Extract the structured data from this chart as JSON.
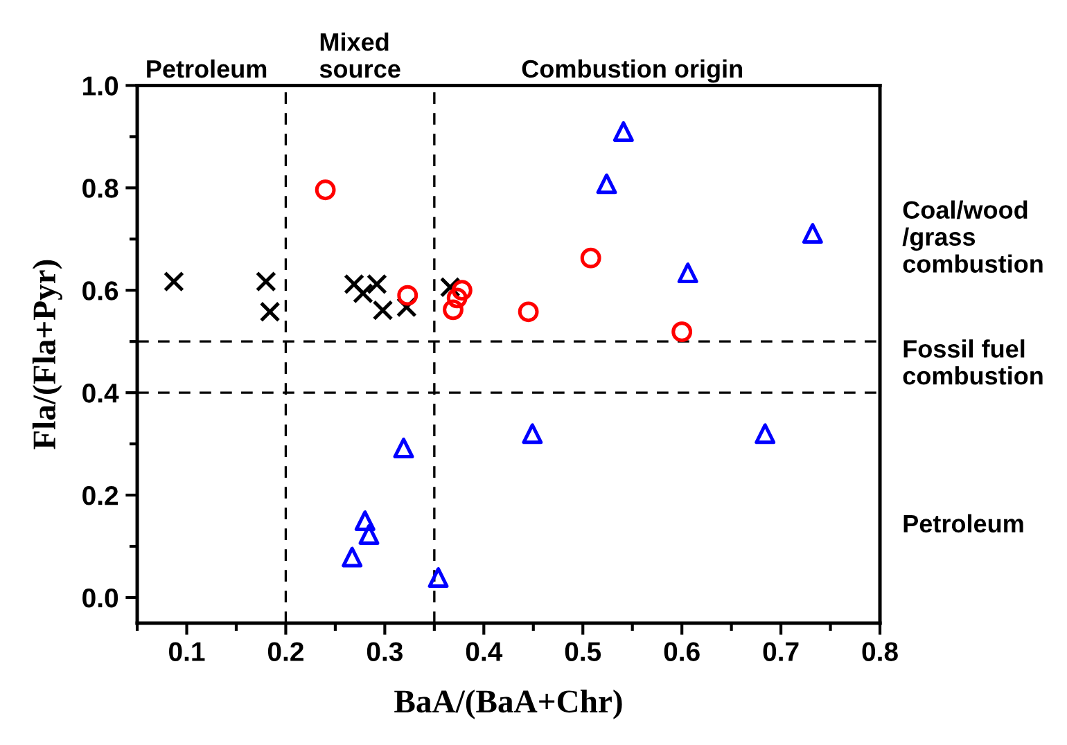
{
  "chart_data": {
    "type": "scatter",
    "xlabel": "BaA/(BaA+Chr)",
    "ylabel": "Fla/(Fla+Pyr)",
    "xlim": [
      0.05,
      0.8
    ],
    "ylim": [
      -0.05,
      1.0
    ],
    "xticks": [
      0.1,
      0.2,
      0.3,
      0.4,
      0.5,
      0.6,
      0.7,
      0.8
    ],
    "yticks": [
      {
        "value": 0,
        "label": "0.0"
      },
      0.2,
      0.4,
      0.6,
      0.8,
      {
        "value": 1,
        "label": "1.0"
      }
    ],
    "grid": false,
    "legend": false,
    "series": [
      {
        "color": "#000000",
        "marker": "cross",
        "x": [
          0.087,
          0.18,
          0.184,
          0.269,
          0.278,
          0.292,
          0.298,
          0.322,
          0.366
        ],
        "values": [
          0.617,
          0.617,
          0.558,
          0.612,
          0.594,
          0.612,
          0.561,
          0.567,
          0.606
        ]
      },
      {
        "color": "#ff0000",
        "marker": "circle",
        "x": [
          0.24,
          0.323,
          0.378,
          0.373,
          0.369,
          0.445,
          0.508,
          0.6
        ],
        "values": [
          0.796,
          0.59,
          0.6,
          0.585,
          0.562,
          0.558,
          0.663,
          0.519
        ]
      },
      {
        "color": "#0000ff",
        "marker": "triangle",
        "x": [
          0.541,
          0.524,
          0.732,
          0.606,
          0.319,
          0.449,
          0.684,
          0.28,
          0.284,
          0.267,
          0.354
        ],
        "values": [
          0.91,
          0.808,
          0.711,
          0.634,
          0.292,
          0.32,
          0.32,
          0.15,
          0.123,
          0.079,
          0.039
        ]
      }
    ],
    "ref_lines": [
      {
        "axis": "x",
        "value": 0.2,
        "line_style": "dashed",
        "color": "#000000"
      },
      {
        "axis": "x",
        "value": 0.35,
        "line_style": "dashed",
        "color": "#000000"
      },
      {
        "axis": "y",
        "value": 0.5,
        "line_style": "dashed",
        "color": "#000000"
      },
      {
        "axis": "y",
        "value": 0.4,
        "line_style": "dashed",
        "color": "#000000"
      }
    ],
    "annotations": [
      "Petroleum",
      "Mixed\nsource",
      "Combustion origin",
      "Coal/wood\n/grass\ncombustion",
      "Fossil fuel\ncombustion",
      "Petroleum"
    ]
  }
}
